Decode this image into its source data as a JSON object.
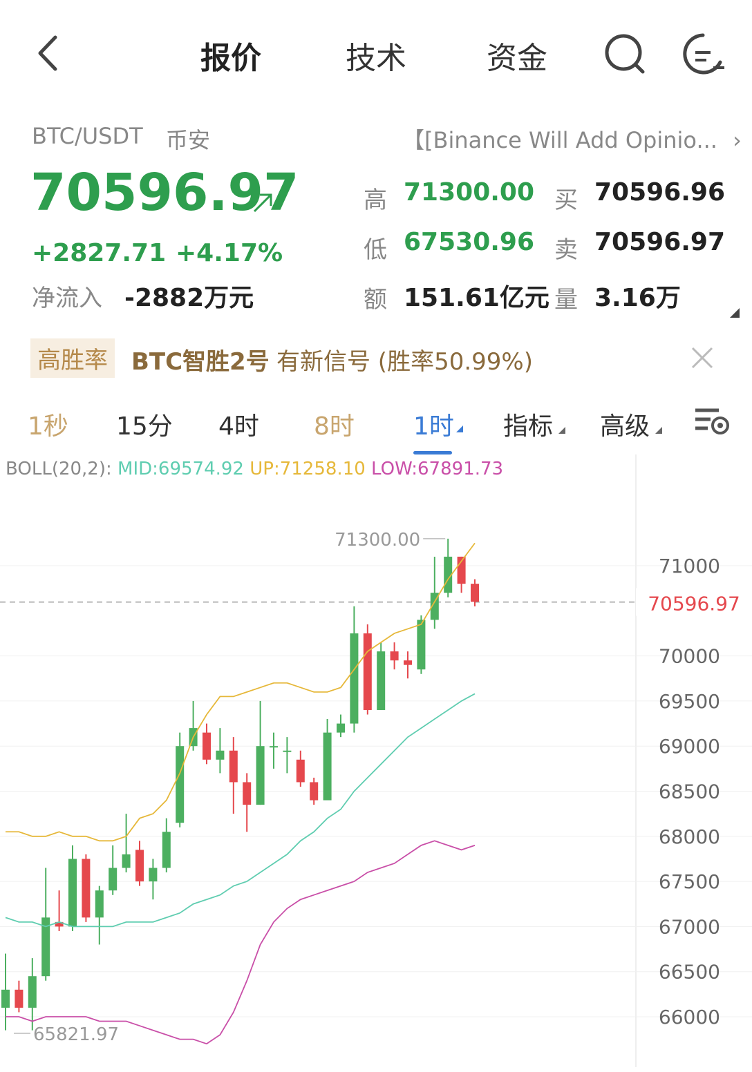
{
  "nav": {
    "tabs": [
      "报价",
      "技术",
      "资金"
    ],
    "active": 0
  },
  "header": {
    "pair": "BTC/USDT",
    "exchange": "币安",
    "news": "【[Binance Will Add Opinio..."
  },
  "quote": {
    "price": "70596.97",
    "change": "+2827.71",
    "change_pct": "+4.17%",
    "net_inflow_label": "净流入",
    "net_inflow": "-2882万元",
    "high_label": "高",
    "high": "71300.00",
    "low_label": "低",
    "low": "67530.96",
    "amount_label": "额",
    "amount": "151.61亿元",
    "bid_label": "买",
    "bid": "70596.96",
    "ask_label": "卖",
    "ask": "70596.97",
    "vol_label": "量",
    "vol": "3.16万"
  },
  "signal": {
    "badge": "高胜率",
    "name": "BTC智胜2号",
    "text": "有新信号 (胜率50.99%)"
  },
  "timeframes": [
    "1秒",
    "15分",
    "4时",
    "8时",
    "1时",
    "指标",
    "高级"
  ],
  "active_timeframe": "1时",
  "colors": {
    "green": "#4caf60",
    "red": "#e5484d",
    "accent": "#3a7bd5",
    "mid": "#5fcdb0",
    "up": "#e6b83a",
    "low": "#c94fa8"
  },
  "boll": {
    "label": "BOLL(20,2):",
    "mid": "MID:69574.92",
    "up": "UP:71258.10",
    "low": "LOW:67891.73"
  },
  "chart_data": {
    "type": "candlestick",
    "y_ticks": [
      71000,
      70000,
      69500,
      69000,
      68500,
      68000,
      67500,
      67000,
      66500,
      66000
    ],
    "current_price_label": "70596.97",
    "high_marker": "71300.00",
    "low_marker": "65821.97",
    "candles": [
      {
        "o": 66100,
        "c": 66300,
        "h": 66700,
        "l": 65850
      },
      {
        "o": 66300,
        "c": 66100,
        "h": 66400,
        "l": 66050
      },
      {
        "o": 66100,
        "c": 66450,
        "h": 66650,
        "l": 65850
      },
      {
        "o": 66450,
        "c": 67100,
        "h": 67650,
        "l": 66400
      },
      {
        "o": 67050,
        "c": 67000,
        "h": 67400,
        "l": 66950
      },
      {
        "o": 67000,
        "c": 67750,
        "h": 67900,
        "l": 66950
      },
      {
        "o": 67750,
        "c": 67100,
        "h": 67800,
        "l": 67050
      },
      {
        "o": 67100,
        "c": 67400,
        "h": 67450,
        "l": 66800
      },
      {
        "o": 67400,
        "c": 67650,
        "h": 67900,
        "l": 67350
      },
      {
        "o": 67650,
        "c": 67800,
        "h": 68250,
        "l": 67600
      },
      {
        "o": 67850,
        "c": 67500,
        "h": 67950,
        "l": 67450
      },
      {
        "o": 67500,
        "c": 67650,
        "h": 67750,
        "l": 67300
      },
      {
        "o": 67650,
        "c": 68050,
        "h": 68200,
        "l": 67600
      },
      {
        "o": 68150,
        "c": 69000,
        "h": 69150,
        "l": 68100
      },
      {
        "o": 69000,
        "c": 69200,
        "h": 69500,
        "l": 68950
      },
      {
        "o": 69150,
        "c": 68850,
        "h": 69250,
        "l": 68800
      },
      {
        "o": 68850,
        "c": 68950,
        "h": 69200,
        "l": 68700
      },
      {
        "o": 68950,
        "c": 68600,
        "h": 69100,
        "l": 68250
      },
      {
        "o": 68600,
        "c": 68350,
        "h": 68700,
        "l": 68050
      },
      {
        "o": 68350,
        "c": 69000,
        "h": 69500,
        "l": 68350
      },
      {
        "o": 69000,
        "c": 69000,
        "h": 69150,
        "l": 68750
      },
      {
        "o": 68950,
        "c": 68950,
        "h": 69100,
        "l": 68700
      },
      {
        "o": 68850,
        "c": 68600,
        "h": 68950,
        "l": 68550
      },
      {
        "o": 68600,
        "c": 68400,
        "h": 68650,
        "l": 68350
      },
      {
        "o": 68400,
        "c": 69150,
        "h": 69300,
        "l": 68400
      },
      {
        "o": 69150,
        "c": 69250,
        "h": 69350,
        "l": 69100
      },
      {
        "o": 69250,
        "c": 70250,
        "h": 70550,
        "l": 69150
      },
      {
        "o": 70250,
        "c": 69400,
        "h": 70350,
        "l": 69350
      },
      {
        "o": 69400,
        "c": 70050,
        "h": 70150,
        "l": 69400
      },
      {
        "o": 70050,
        "c": 69950,
        "h": 70150,
        "l": 69850
      },
      {
        "o": 69950,
        "c": 69900,
        "h": 70050,
        "l": 69750
      },
      {
        "o": 69850,
        "c": 70400,
        "h": 70450,
        "l": 69800
      },
      {
        "o": 70400,
        "c": 70700,
        "h": 71100,
        "l": 70300
      },
      {
        "o": 70700,
        "c": 71100,
        "h": 71300,
        "l": 70650
      },
      {
        "o": 71100,
        "c": 70800,
        "h": 71100,
        "l": 70700
      },
      {
        "o": 70800,
        "c": 70600,
        "h": 70850,
        "l": 70550
      }
    ],
    "boll_up": [
      68050,
      68050,
      68000,
      68000,
      68050,
      68000,
      68000,
      67950,
      67950,
      68000,
      68200,
      68250,
      68400,
      68700,
      69100,
      69350,
      69550,
      69550,
      69600,
      69650,
      69700,
      69700,
      69650,
      69600,
      69600,
      69650,
      69850,
      70050,
      70150,
      70250,
      70300,
      70350,
      70600,
      70850,
      71050,
      71250
    ],
    "boll_mid": [
      67100,
      67050,
      67050,
      67000,
      67050,
      67000,
      67000,
      67000,
      67000,
      67050,
      67050,
      67050,
      67100,
      67150,
      67250,
      67300,
      67350,
      67450,
      67500,
      67600,
      67700,
      67800,
      67950,
      68050,
      68200,
      68300,
      68500,
      68650,
      68800,
      68950,
      69100,
      69200,
      69300,
      69400,
      69500,
      69580
    ],
    "boll_low": [
      66000,
      66000,
      65950,
      66000,
      66000,
      66000,
      66000,
      65950,
      65950,
      65950,
      65900,
      65850,
      65800,
      65750,
      65750,
      65700,
      65800,
      66050,
      66400,
      66800,
      67050,
      67200,
      67300,
      67350,
      67400,
      67450,
      67500,
      67600,
      67650,
      67700,
      67800,
      67900,
      67950,
      67900,
      67850,
      67900
    ]
  }
}
